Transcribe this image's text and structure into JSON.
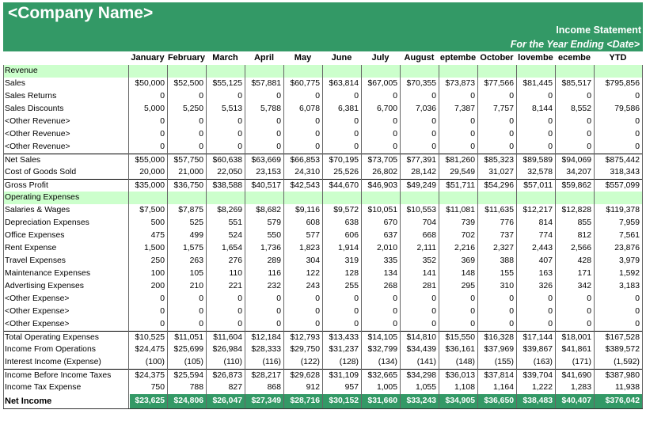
{
  "header": {
    "company": "<Company Name>",
    "statement_title": "Income Statement",
    "period": "For the Year Ending <Date>"
  },
  "columns": [
    "January",
    "February",
    "March",
    "April",
    "May",
    "June",
    "July",
    "August",
    "eptembe",
    "October",
    "lovembe",
    "ecembe",
    "YTD"
  ],
  "rows": [
    {
      "type": "section",
      "label": "Revenue"
    },
    {
      "label": "Sales",
      "values": [
        "$50,000",
        "$52,500",
        "$55,125",
        "$57,881",
        "$60,775",
        "$63,814",
        "$67,005",
        "$70,355",
        "$73,873",
        "$77,566",
        "$81,445",
        "$85,517",
        "$795,856"
      ]
    },
    {
      "label": "Sales Returns",
      "values": [
        "0",
        "0",
        "0",
        "0",
        "0",
        "0",
        "0",
        "0",
        "0",
        "0",
        "0",
        "0",
        "0"
      ]
    },
    {
      "label": "Sales Discounts",
      "values": [
        "5,000",
        "5,250",
        "5,513",
        "5,788",
        "6,078",
        "6,381",
        "6,700",
        "7,036",
        "7,387",
        "7,757",
        "8,144",
        "8,552",
        "79,586"
      ]
    },
    {
      "label": "<Other Revenue>",
      "values": [
        "0",
        "0",
        "0",
        "0",
        "0",
        "0",
        "0",
        "0",
        "0",
        "0",
        "0",
        "0",
        "0"
      ]
    },
    {
      "label": "<Other Revenue>",
      "values": [
        "0",
        "0",
        "0",
        "0",
        "0",
        "0",
        "0",
        "0",
        "0",
        "0",
        "0",
        "0",
        "0"
      ]
    },
    {
      "label": "<Other Revenue>",
      "values": [
        "0",
        "0",
        "0",
        "0",
        "0",
        "0",
        "0",
        "0",
        "0",
        "0",
        "0",
        "0",
        "0"
      ]
    },
    {
      "type": "total",
      "label": "Net Sales",
      "values": [
        "$55,000",
        "$57,750",
        "$60,638",
        "$63,669",
        "$66,853",
        "$70,195",
        "$73,705",
        "$77,391",
        "$81,260",
        "$85,323",
        "$89,589",
        "$94,069",
        "$875,442"
      ]
    },
    {
      "label": "Cost of Goods Sold",
      "values": [
        "20,000",
        "21,000",
        "22,050",
        "23,153",
        "24,310",
        "25,526",
        "26,802",
        "28,142",
        "29,549",
        "31,027",
        "32,578",
        "34,207",
        "318,343"
      ]
    },
    {
      "type": "total",
      "label": "Gross Profit",
      "values": [
        "$35,000",
        "$36,750",
        "$38,588",
        "$40,517",
        "$42,543",
        "$44,670",
        "$46,903",
        "$49,249",
        "$51,711",
        "$54,296",
        "$57,011",
        "$59,862",
        "$557,099"
      ]
    },
    {
      "type": "section",
      "label": "Operating Expenses"
    },
    {
      "label": "Salaries & Wages",
      "values": [
        "$7,500",
        "$7,875",
        "$8,269",
        "$8,682",
        "$9,116",
        "$9,572",
        "$10,051",
        "$10,553",
        "$11,081",
        "$11,635",
        "$12,217",
        "$12,828",
        "$119,378"
      ]
    },
    {
      "label": "Depreciation Expenses",
      "values": [
        "500",
        "525",
        "551",
        "579",
        "608",
        "638",
        "670",
        "704",
        "739",
        "776",
        "814",
        "855",
        "7,959"
      ]
    },
    {
      "label": "Office Expenses",
      "values": [
        "475",
        "499",
        "524",
        "550",
        "577",
        "606",
        "637",
        "668",
        "702",
        "737",
        "774",
        "812",
        "7,561"
      ]
    },
    {
      "label": "Rent Expense",
      "values": [
        "1,500",
        "1,575",
        "1,654",
        "1,736",
        "1,823",
        "1,914",
        "2,010",
        "2,111",
        "2,216",
        "2,327",
        "2,443",
        "2,566",
        "23,876"
      ]
    },
    {
      "label": "Travel Expenses",
      "values": [
        "250",
        "263",
        "276",
        "289",
        "304",
        "319",
        "335",
        "352",
        "369",
        "388",
        "407",
        "428",
        "3,979"
      ]
    },
    {
      "label": "Maintenance Expenses",
      "values": [
        "100",
        "105",
        "110",
        "116",
        "122",
        "128",
        "134",
        "141",
        "148",
        "155",
        "163",
        "171",
        "1,592"
      ]
    },
    {
      "label": "Advertising Expenses",
      "values": [
        "200",
        "210",
        "221",
        "232",
        "243",
        "255",
        "268",
        "281",
        "295",
        "310",
        "326",
        "342",
        "3,183"
      ]
    },
    {
      "label": "<Other Expense>",
      "values": [
        "0",
        "0",
        "0",
        "0",
        "0",
        "0",
        "0",
        "0",
        "0",
        "0",
        "0",
        "0",
        "0"
      ]
    },
    {
      "label": "<Other Expense>",
      "values": [
        "0",
        "0",
        "0",
        "0",
        "0",
        "0",
        "0",
        "0",
        "0",
        "0",
        "0",
        "0",
        "0"
      ]
    },
    {
      "label": "<Other Expense>",
      "values": [
        "0",
        "0",
        "0",
        "0",
        "0",
        "0",
        "0",
        "0",
        "0",
        "0",
        "0",
        "0",
        "0"
      ]
    },
    {
      "type": "total",
      "label": "Total Operating Expenses",
      "values": [
        "$10,525",
        "$11,051",
        "$11,604",
        "$12,184",
        "$12,793",
        "$13,433",
        "$14,105",
        "$14,810",
        "$15,550",
        "$16,328",
        "$17,144",
        "$18,001",
        "$167,528"
      ]
    },
    {
      "label": "Income From Operations",
      "values": [
        "$24,475",
        "$25,699",
        "$26,984",
        "$28,333",
        "$29,750",
        "$31,237",
        "$32,799",
        "$34,439",
        "$36,161",
        "$37,969",
        "$39,867",
        "$41,861",
        "$389,572"
      ]
    },
    {
      "label": "Interest Income (Expense)",
      "values": [
        "(100)",
        "(105)",
        "(110)",
        "(116)",
        "(122)",
        "(128)",
        "(134)",
        "(141)",
        "(148)",
        "(155)",
        "(163)",
        "(171)",
        "(1,592)"
      ]
    },
    {
      "type": "total",
      "label": "Income Before Income Taxes",
      "values": [
        "$24,375",
        "$25,594",
        "$26,873",
        "$28,217",
        "$29,628",
        "$31,109",
        "$32,665",
        "$34,298",
        "$36,013",
        "$37,814",
        "$39,704",
        "$41,690",
        "$387,980"
      ]
    },
    {
      "label": "Income Tax Expense",
      "values": [
        "750",
        "788",
        "827",
        "868",
        "912",
        "957",
        "1,005",
        "1,055",
        "1,108",
        "1,164",
        "1,222",
        "1,283",
        "11,938"
      ]
    },
    {
      "type": "net",
      "label": "Net Income",
      "values": [
        "$23,625",
        "$24,806",
        "$26,047",
        "$27,349",
        "$28,716",
        "$30,152",
        "$31,660",
        "$33,243",
        "$34,905",
        "$36,650",
        "$38,483",
        "$40,407",
        "$376,042"
      ]
    }
  ]
}
